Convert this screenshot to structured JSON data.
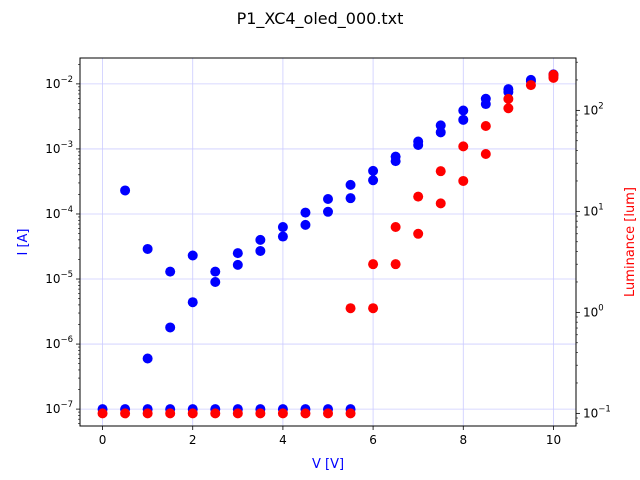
{
  "chart_data": {
    "type": "scatter",
    "title": "P1_XC4_oled_000.txt",
    "xlabel": "V [V]",
    "ylabel_left": "I [A]",
    "ylabel_right": "Luminance [lum]",
    "xlim": [
      -0.5,
      10.5
    ],
    "ylim_left": [
      5.5e-08,
      0.025
    ],
    "ylim_right": [
      0.075,
      330
    ],
    "yscale_left": "log",
    "yscale_right": "log",
    "grid": true,
    "x_ticks": [
      0,
      2,
      4,
      6,
      8,
      10
    ],
    "x_tick_labels": [
      "0",
      "2",
      "4",
      "6",
      "8",
      "10"
    ],
    "y_left_ticks": [
      {
        "value": 1e-07,
        "base": "10",
        "exp": "−7"
      },
      {
        "value": 1e-06,
        "base": "10",
        "exp": "−6"
      },
      {
        "value": 1e-05,
        "base": "10",
        "exp": "−5"
      },
      {
        "value": 0.0001,
        "base": "10",
        "exp": "−4"
      },
      {
        "value": 0.001,
        "base": "10",
        "exp": "−3"
      },
      {
        "value": 0.01,
        "base": "10",
        "exp": "−2"
      }
    ],
    "y_right_ticks": [
      {
        "value": 0.1,
        "base": "10",
        "exp": "−1"
      },
      {
        "value": 1,
        "base": "10",
        "exp": "0"
      },
      {
        "value": 10,
        "base": "10",
        "exp": "1"
      },
      {
        "value": 100,
        "base": "10",
        "exp": "2"
      }
    ],
    "colors": {
      "current": "#0000ff",
      "luminance": "#ff0000",
      "grid": "#ccccff"
    },
    "series": [
      {
        "axis": "left",
        "color": "#0000ff",
        "points": [
          [
            0,
            1e-07
          ],
          [
            0.5,
            1e-07
          ],
          [
            1,
            1e-07
          ],
          [
            1.5,
            1e-07
          ],
          [
            2,
            1e-07
          ],
          [
            2.5,
            1e-07
          ],
          [
            3,
            1e-07
          ],
          [
            3.5,
            1e-07
          ],
          [
            4,
            1e-07
          ],
          [
            4.5,
            1e-07
          ],
          [
            5,
            1e-07
          ],
          [
            5.5,
            1e-07
          ],
          [
            0.5,
            0.00023
          ],
          [
            1,
            2.9e-05
          ],
          [
            1,
            6e-07
          ],
          [
            1.5,
            1.3e-05
          ],
          [
            1.5,
            1.8e-06
          ],
          [
            2,
            2.3e-05
          ],
          [
            2,
            4.4e-06
          ],
          [
            2.5,
            1.3e-05
          ],
          [
            2.5,
            9e-06
          ],
          [
            3,
            2.5e-05
          ],
          [
            3,
            1.65e-05
          ],
          [
            3.5,
            4e-05
          ],
          [
            3.5,
            2.7e-05
          ],
          [
            4,
            6.3e-05
          ],
          [
            4,
            4.5e-05
          ],
          [
            4.5,
            0.000105
          ],
          [
            4.5,
            6.8e-05
          ],
          [
            5,
            0.00017
          ],
          [
            5,
            0.000108
          ],
          [
            5.5,
            0.00028
          ],
          [
            5.5,
            0.000175
          ],
          [
            6,
            0.00046
          ],
          [
            6,
            0.00033
          ],
          [
            6.5,
            0.00076
          ],
          [
            6.5,
            0.00065
          ],
          [
            7,
            0.0013
          ],
          [
            7,
            0.00115
          ],
          [
            7.5,
            0.0023
          ],
          [
            7.5,
            0.0018
          ],
          [
            8,
            0.0039
          ],
          [
            8,
            0.0028
          ],
          [
            8.5,
            0.0059
          ],
          [
            8.5,
            0.0049
          ],
          [
            9,
            0.0083
          ],
          [
            9,
            0.0075
          ],
          [
            9.5,
            0.0115
          ],
          [
            9.5,
            0.011
          ],
          [
            10,
            0.014
          ],
          [
            10,
            0.0135
          ]
        ]
      },
      {
        "axis": "right",
        "color": "#ff0000",
        "points": [
          [
            0,
            0.1
          ],
          [
            0.5,
            0.1
          ],
          [
            1,
            0.1
          ],
          [
            1.5,
            0.1
          ],
          [
            2,
            0.1
          ],
          [
            2.5,
            0.1
          ],
          [
            3,
            0.1
          ],
          [
            3.5,
            0.1
          ],
          [
            4,
            0.1
          ],
          [
            4.5,
            0.1
          ],
          [
            5,
            0.1
          ],
          [
            5.5,
            0.1
          ],
          [
            5.5,
            1.1
          ],
          [
            6,
            1.1
          ],
          [
            6,
            3
          ],
          [
            6.5,
            3
          ],
          [
            6.5,
            7
          ],
          [
            7,
            6
          ],
          [
            7,
            14
          ],
          [
            7.5,
            12
          ],
          [
            7.5,
            25
          ],
          [
            8,
            20
          ],
          [
            8,
            44
          ],
          [
            8.5,
            37
          ],
          [
            8.5,
            70
          ],
          [
            9,
            105
          ],
          [
            9,
            130
          ],
          [
            9.5,
            178
          ],
          [
            10,
            210
          ],
          [
            10,
            225
          ]
        ]
      }
    ]
  }
}
